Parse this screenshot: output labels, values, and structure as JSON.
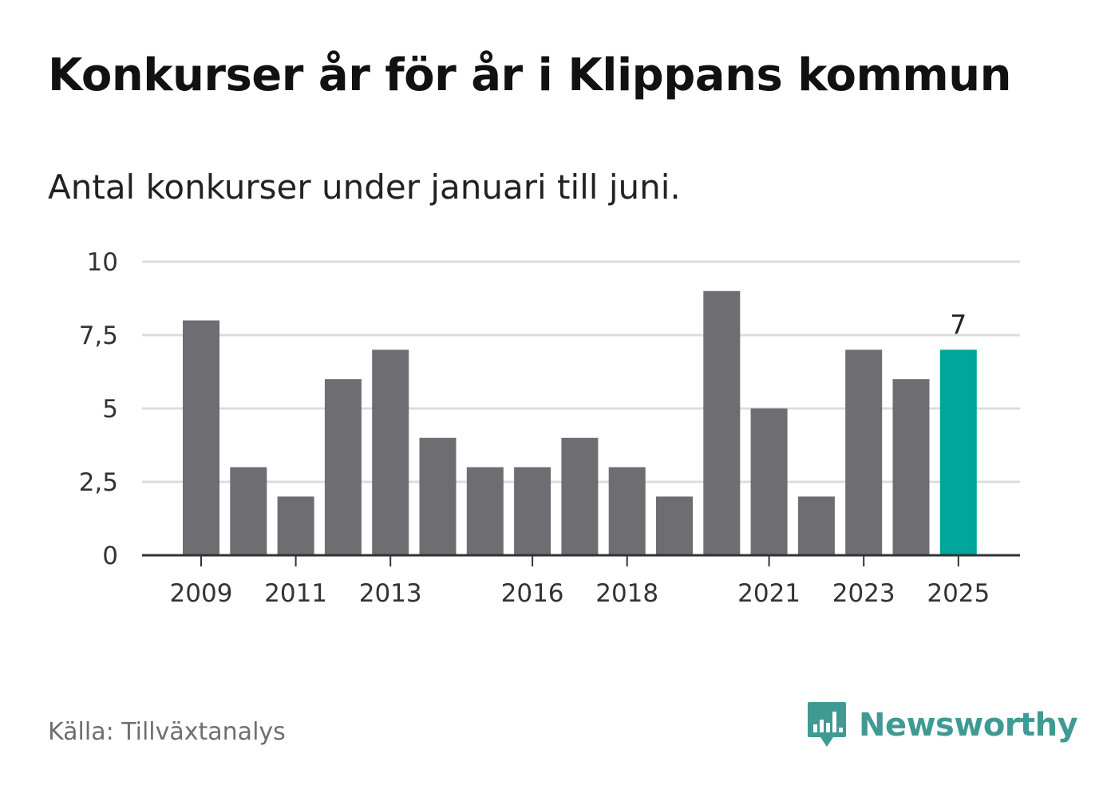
{
  "title": "Konkurser år för år i Klippans kommun",
  "subtitle": "Antal konkurser under januari till juni.",
  "source": "Källa: Tillväxtanalys",
  "brand": {
    "name": "Newsworthy",
    "icon": "bar-chart-speech-bubble-icon",
    "color": "#3f9a94"
  },
  "chart_data": {
    "type": "bar",
    "categories": [
      "2009",
      "2010",
      "2011",
      "2012",
      "2013",
      "2014",
      "2015",
      "2016",
      "2017",
      "2018",
      "2019",
      "2020",
      "2021",
      "2022",
      "2023",
      "2024",
      "2025"
    ],
    "values": [
      8,
      3,
      2,
      6,
      7,
      4,
      3,
      3,
      4,
      3,
      2,
      9,
      5,
      2,
      7,
      6,
      7
    ],
    "x_tick_labels": [
      "2009",
      "2011",
      "2013",
      "2016",
      "2018",
      "2021",
      "2023",
      "2025"
    ],
    "y_ticks": [
      0,
      2.5,
      5,
      7.5,
      10
    ],
    "y_tick_labels": [
      "0",
      "2,5",
      "5",
      "7,5",
      "10"
    ],
    "ylim": [
      0,
      10
    ],
    "highlight": {
      "category": "2025",
      "label": "7",
      "color": "#00a69a"
    },
    "bar_color": "#6d6d72",
    "grid": true
  }
}
